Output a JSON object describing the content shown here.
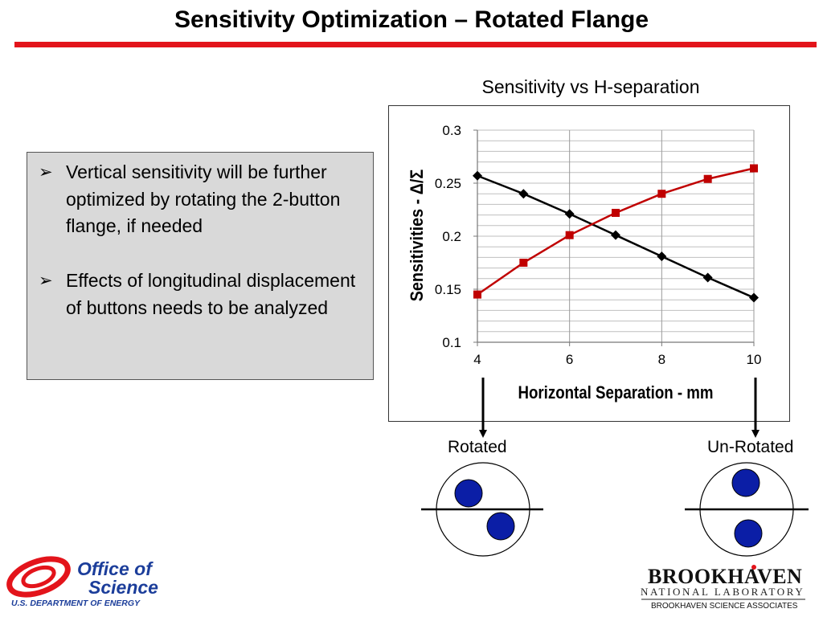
{
  "slide": {
    "title": "Sensitivity Optimization – Rotated Flange",
    "accent_color": "#e3141b"
  },
  "bullets": [
    {
      "text": "Vertical sensitivity will be further optimized by rotating the 2-button flange, if needed"
    },
    {
      "text": "Effects of longitudinal displacement of buttons needs to be analyzed"
    }
  ],
  "diagram": {
    "rotated_label": "Rotated",
    "unrotated_label": "Un-Rotated",
    "button_color": "#0b1ea6"
  },
  "footer": {
    "doe_line1": "Office of",
    "doe_line2": "Science",
    "doe_dept": "U.S. DEPARTMENT OF ENERGY",
    "bnl_name": "BROOKHAVEN",
    "bnl_sub": "NATIONAL LABORATORY",
    "bnl_assoc": "BROOKHAVEN SCIENCE ASSOCIATES"
  },
  "chart_data": {
    "type": "line",
    "title": "Sensitivity vs H-separation",
    "xlabel": "Horizontal Separation - mm",
    "ylabel": "Sensitivities - Δ/Σ",
    "xlim": [
      4,
      10
    ],
    "ylim": [
      0.1,
      0.3
    ],
    "x_ticks": [
      "4",
      "6",
      "8",
      "10"
    ],
    "y_ticks": [
      "0.3",
      "0.25",
      "0.2",
      "0.15",
      "0.1"
    ],
    "x": [
      4,
      5,
      6,
      7,
      8,
      9,
      10
    ],
    "grid": true,
    "series": [
      {
        "values": [
          0.257,
          0.24,
          0.221,
          0.201,
          0.181,
          0.161,
          0.142
        ],
        "color": "#000000",
        "marker": "diamond"
      },
      {
        "values": [
          0.145,
          0.175,
          0.201,
          0.222,
          0.24,
          0.254,
          0.264
        ],
        "color": "#c00000",
        "marker": "square"
      }
    ]
  }
}
